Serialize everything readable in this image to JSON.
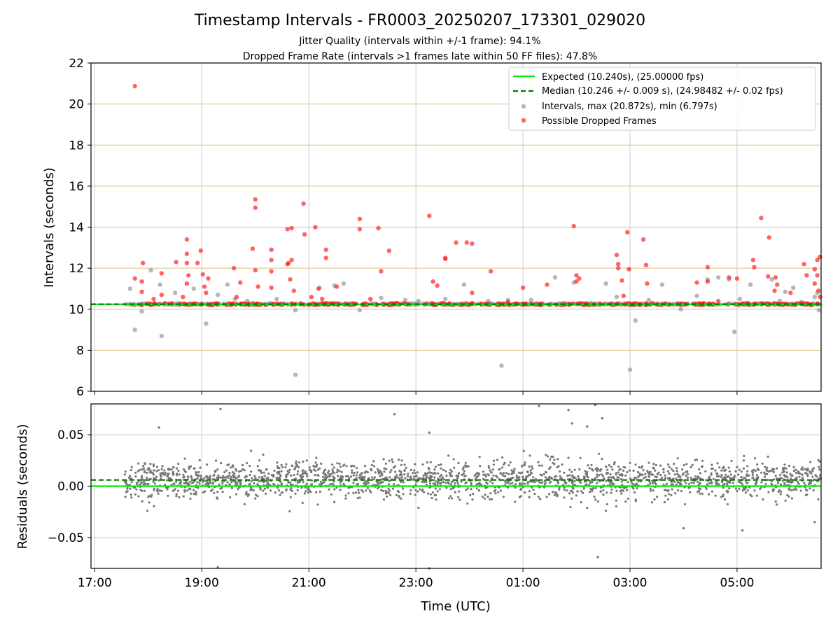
{
  "figure": {
    "title": "Timestamp Intervals - FR0003_20250207_173301_029020",
    "subtitle_1": "Jitter Quality (intervals within +/-1 frame): 94.1%",
    "subtitle_2": "Dropped Frame Rate (intervals >1 frames late within 50 FF files): 47.8%"
  },
  "colors": {
    "expected": "#00ee00",
    "median": "#007700",
    "intervals": "#999999",
    "dropped": "#ff2222",
    "residuals": "#777777",
    "hgrid_top": "#d8c080",
    "grid": "#cccccc"
  },
  "chart_data": [
    {
      "type": "scatter",
      "title": "",
      "xlabel": "",
      "ylabel": "Intervals (seconds)",
      "x_unit": "hours since 17:00 UTC",
      "xlim": [
        -0.07,
        13.57
      ],
      "ylim": [
        6,
        22
      ],
      "y_ticks": [
        6,
        8,
        10,
        12,
        14,
        16,
        18,
        20,
        22
      ],
      "x_tick_labels": [
        "17:00",
        "19:00",
        "21:00",
        "23:00",
        "01:00",
        "03:00",
        "05:00"
      ],
      "grid": "on",
      "legend_position": "top-right",
      "legend": {
        "expected": "Expected (10.240s), (25.00000 fps)",
        "median": "Median (10.246 +/- 0.009 s), (24.98482 +/- 0.02 fps)",
        "intervals": "Intervals, max (20.872s), min (6.797s)",
        "dropped": "Possible Dropped Frames"
      },
      "expected_value": 10.24,
      "median_value": 10.246,
      "x_range_data": [
        0.55,
        13.57
      ],
      "series": [
        {
          "name": "Intervals, max (20.872s), min (6.797s)",
          "points": [
            [
              0.66,
              11.0
            ],
            [
              0.75,
              9.0
            ],
            [
              0.88,
              9.9
            ],
            [
              1.05,
              11.9
            ],
            [
              1.25,
              8.7
            ],
            [
              1.22,
              11.2
            ],
            [
              1.5,
              10.8
            ],
            [
              1.85,
              11.0
            ],
            [
              2.08,
              9.3
            ],
            [
              2.3,
              10.7
            ],
            [
              2.48,
              11.2
            ],
            [
              2.62,
              10.5
            ],
            [
              2.85,
              10.4
            ],
            [
              3.4,
              10.5
            ],
            [
              3.75,
              6.8
            ],
            [
              3.75,
              9.95
            ],
            [
              4.2,
              11.05
            ],
            [
              4.48,
              11.15
            ],
            [
              4.65,
              11.25
            ],
            [
              4.95,
              9.95
            ],
            [
              5.35,
              10.55
            ],
            [
              5.8,
              10.45
            ],
            [
              6.05,
              10.4
            ],
            [
              6.55,
              10.5
            ],
            [
              6.9,
              11.2
            ],
            [
              7.35,
              10.4
            ],
            [
              7.6,
              7.25
            ],
            [
              7.72,
              10.45
            ],
            [
              8.15,
              10.45
            ],
            [
              8.6,
              11.55
            ],
            [
              8.95,
              11.3
            ],
            [
              9.55,
              11.25
            ],
            [
              9.75,
              10.6
            ],
            [
              10.1,
              9.45
            ],
            [
              10.0,
              7.05
            ],
            [
              10.35,
              10.45
            ],
            [
              10.6,
              11.2
            ],
            [
              10.95,
              10.0
            ],
            [
              11.25,
              10.65
            ],
            [
              11.45,
              11.45
            ],
            [
              11.65,
              11.55
            ],
            [
              11.85,
              11.45
            ],
            [
              11.95,
              8.9
            ],
            [
              12.05,
              10.5
            ],
            [
              12.25,
              11.2
            ],
            [
              12.65,
              11.45
            ],
            [
              12.8,
              10.4
            ],
            [
              12.9,
              10.85
            ],
            [
              13.05,
              11.05
            ],
            [
              13.25,
              10.3
            ],
            [
              13.45,
              10.6
            ],
            [
              13.5,
              10.8
            ],
            [
              13.53,
              9.95
            ],
            [
              13.2,
              10.35
            ]
          ]
        },
        {
          "name": "Possible Dropped Frames",
          "points": [
            [
              0.75,
              20.87
            ],
            [
              0.75,
              11.5
            ],
            [
              0.88,
              11.35
            ],
            [
              0.9,
              12.25
            ],
            [
              0.88,
              10.85
            ],
            [
              1.1,
              10.5
            ],
            [
              1.25,
              11.75
            ],
            [
              1.25,
              10.7
            ],
            [
              1.52,
              12.3
            ],
            [
              1.72,
              13.4
            ],
            [
              1.72,
              12.7
            ],
            [
              1.72,
              12.25
            ],
            [
              1.75,
              11.65
            ],
            [
              1.72,
              11.25
            ],
            [
              1.65,
              10.6
            ],
            [
              1.92,
              12.25
            ],
            [
              1.98,
              12.85
            ],
            [
              2.02,
              11.7
            ],
            [
              2.05,
              11.1
            ],
            [
              2.08,
              10.8
            ],
            [
              2.12,
              11.5
            ],
            [
              2.6,
              12.0
            ],
            [
              2.72,
              11.3
            ],
            [
              2.65,
              10.6
            ],
            [
              2.95,
              12.95
            ],
            [
              3.0,
              15.35
            ],
            [
              3.0,
              14.95
            ],
            [
              3.0,
              11.9
            ],
            [
              3.05,
              11.1
            ],
            [
              3.3,
              12.9
            ],
            [
              3.3,
              12.4
            ],
            [
              3.3,
              11.85
            ],
            [
              3.3,
              11.05
            ],
            [
              3.6,
              13.9
            ],
            [
              3.68,
              13.95
            ],
            [
              3.6,
              12.2
            ],
            [
              3.62,
              12.25
            ],
            [
              3.68,
              12.4
            ],
            [
              3.65,
              11.45
            ],
            [
              3.72,
              10.9
            ],
            [
              3.9,
              15.15
            ],
            [
              3.92,
              13.65
            ],
            [
              4.05,
              10.6
            ],
            [
              4.12,
              14.0
            ],
            [
              4.18,
              11.0
            ],
            [
              4.32,
              12.9
            ],
            [
              4.32,
              12.5
            ],
            [
              4.25,
              10.5
            ],
            [
              4.52,
              11.1
            ],
            [
              4.95,
              14.4
            ],
            [
              4.95,
              13.9
            ],
            [
              5.15,
              10.5
            ],
            [
              5.3,
              13.95
            ],
            [
              5.5,
              12.85
            ],
            [
              5.35,
              11.85
            ],
            [
              5.65,
              10.3
            ],
            [
              6.25,
              14.55
            ],
            [
              6.32,
              11.35
            ],
            [
              6.4,
              11.15
            ],
            [
              6.3,
              10.3
            ],
            [
              6.55,
              12.5
            ],
            [
              6.55,
              12.45
            ],
            [
              6.75,
              13.25
            ],
            [
              6.95,
              13.25
            ],
            [
              7.05,
              13.2
            ],
            [
              7.05,
              10.8
            ],
            [
              7.4,
              11.85
            ],
            [
              7.72,
              10.35
            ],
            [
              8.0,
              11.05
            ],
            [
              8.45,
              11.2
            ],
            [
              8.95,
              14.05
            ],
            [
              9.0,
              11.65
            ],
            [
              9.05,
              11.5
            ],
            [
              9.0,
              11.35
            ],
            [
              9.75,
              12.65
            ],
            [
              9.78,
              12.2
            ],
            [
              9.78,
              12.0
            ],
            [
              9.85,
              11.4
            ],
            [
              9.95,
              13.75
            ],
            [
              9.98,
              11.95
            ],
            [
              9.88,
              10.65
            ],
            [
              10.25,
              13.4
            ],
            [
              10.3,
              12.15
            ],
            [
              10.32,
              11.25
            ],
            [
              10.42,
              10.3
            ],
            [
              11.25,
              11.3
            ],
            [
              11.45,
              12.05
            ],
            [
              11.45,
              11.35
            ],
            [
              11.65,
              10.4
            ],
            [
              11.85,
              11.55
            ],
            [
              12.0,
              11.5
            ],
            [
              12.2,
              10.3
            ],
            [
              12.3,
              12.4
            ],
            [
              12.32,
              12.05
            ],
            [
              12.45,
              14.45
            ],
            [
              12.6,
              13.5
            ],
            [
              12.58,
              11.6
            ],
            [
              12.72,
              11.55
            ],
            [
              12.75,
              11.2
            ],
            [
              12.7,
              10.9
            ],
            [
              13.0,
              10.8
            ],
            [
              13.25,
              12.2
            ],
            [
              13.3,
              11.65
            ],
            [
              13.55,
              12.55
            ],
            [
              13.58,
              12.35
            ],
            [
              13.6,
              12.0
            ],
            [
              13.62,
              11.9
            ],
            [
              13.45,
              11.95
            ],
            [
              13.62,
              10.95
            ],
            [
              13.7,
              10.7
            ],
            [
              13.85,
              11.7
            ],
            [
              14.0,
              10.35
            ],
            [
              13.45,
              11.25
            ],
            [
              13.5,
              11.65
            ],
            [
              13.5,
              12.4
            ],
            [
              13.52,
              10.9
            ],
            [
              13.55,
              10.6
            ]
          ]
        }
      ],
      "dense_band": {
        "intervals_range": [
          10.2,
          10.3
        ],
        "dropped_center": 10.25
      }
    },
    {
      "type": "scatter",
      "title": "",
      "xlabel": "Time (UTC)",
      "ylabel": "Residuals (seconds)",
      "x_unit": "hours since 17:00 UTC",
      "xlim": [
        -0.07,
        13.57
      ],
      "ylim": [
        -0.08,
        0.08
      ],
      "y_ticks": [
        -0.05,
        0.0,
        0.05
      ],
      "y_tick_labels": [
        "−0.05",
        "0.00",
        "0.05"
      ],
      "x_tick_labels": [
        "17:00",
        "19:00",
        "21:00",
        "23:00",
        "01:00",
        "03:00",
        "05:00"
      ],
      "grid": "on",
      "expected_residual": 0.0,
      "median_residual": 0.006,
      "x_range_data": [
        0.55,
        13.57
      ],
      "series": [
        {
          "name": "Residuals",
          "outliers": [
            [
              1.2,
              0.057
            ],
            [
              2.35,
              0.075
            ],
            [
              6.25,
              0.052
            ],
            [
              5.6,
              0.07
            ],
            [
              8.3,
              0.078
            ],
            [
              8.85,
              0.074
            ],
            [
              9.35,
              0.079
            ],
            [
              9.48,
              0.066
            ],
            [
              8.92,
              0.061
            ],
            [
              9.2,
              0.058
            ],
            [
              2.3,
              -0.079
            ],
            [
              6.25,
              -0.08
            ],
            [
              9.4,
              -0.069
            ],
            [
              11.0,
              -0.041
            ],
            [
              12.1,
              -0.043
            ],
            [
              13.45,
              -0.035
            ]
          ],
          "distribution": {
            "mean": 0.006,
            "sd": 0.009,
            "count": 2000
          }
        }
      ]
    }
  ]
}
